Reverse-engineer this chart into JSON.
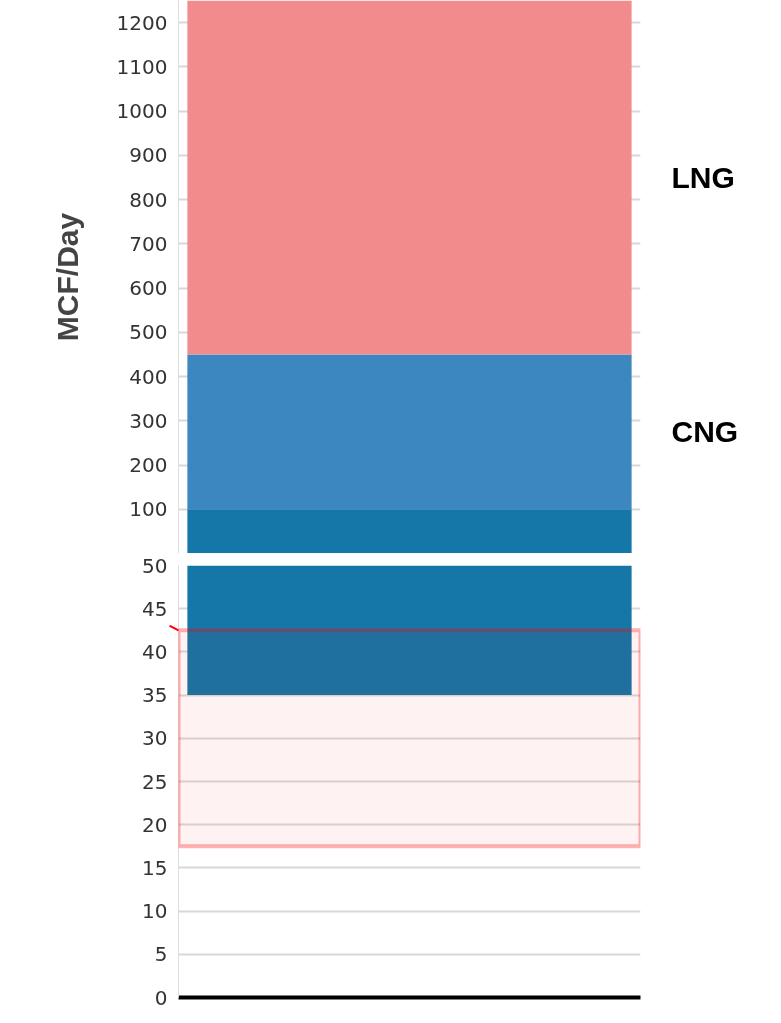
{
  "chart_data": [
    {
      "type": "bar",
      "stacked": true,
      "categories": [
        null
      ],
      "series": [
        {
          "color": "#1577a8",
          "values": [
            100
          ]
        },
        {
          "name": "CNG",
          "color": "#3d87c0",
          "values": [
            350
          ]
        },
        {
          "name": "LNG",
          "color": "#f28b8b",
          "values": [
            800
          ]
        }
      ],
      "ylabel": "MCF/Day",
      "ylim": [
        0,
        1250
      ],
      "yticks": [
        100,
        200,
        300,
        400,
        500,
        600,
        700,
        800,
        900,
        1000,
        1100,
        1200
      ],
      "grid": "y",
      "tick_labels": "y"
    },
    {
      "type": "bar",
      "categories": [
        null
      ],
      "series": [
        {
          "color": "#1577a8",
          "base": [
            35
          ],
          "values": [
            15
          ]
        }
      ],
      "ylim": [
        0,
        50
      ],
      "yticks": [
        0,
        5,
        10,
        15,
        20,
        25,
        30,
        35,
        40,
        45,
        50
      ],
      "grid": "y",
      "tick_labels": "y",
      "bands": [
        {
          "axis": "y",
          "from": 17.5,
          "to": 42.5,
          "color": "#ff0000"
        }
      ]
    }
  ]
}
